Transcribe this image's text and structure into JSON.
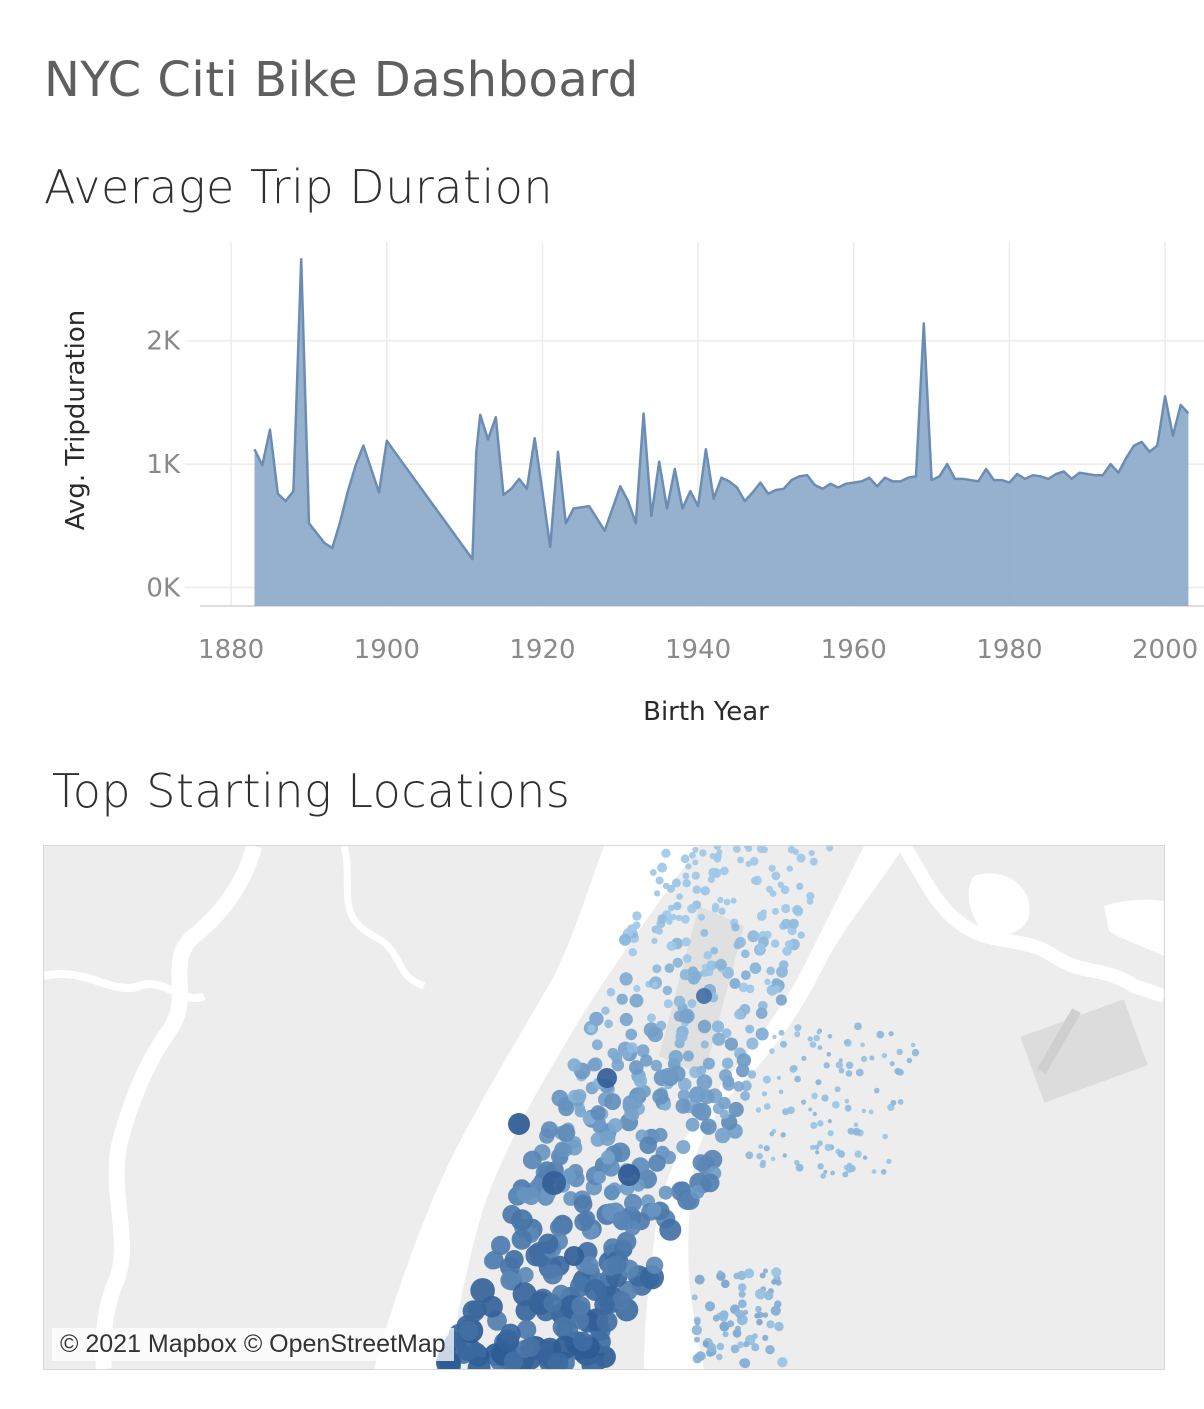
{
  "dashboard": {
    "title": "NYC Citi Bike Dashboard"
  },
  "trip_chart": {
    "section_title": "Average Trip Duration"
  },
  "map": {
    "section_title": "Top Starting Locations",
    "attribution": "© 2021 Mapbox © OpenStreetMap",
    "colors": {
      "land": "#ededed",
      "water": "#ffffff",
      "park": "#e2e2e2",
      "dot_dark": "#2c5a93",
      "dot_light": "#9ec8e8"
    }
  },
  "chart_data": {
    "type": "area",
    "title": "Average Trip Duration",
    "xlabel": "Birth Year",
    "ylabel": "Avg. Tripduration",
    "xlim": [
      1876,
      2005
    ],
    "ylim": [
      -150,
      2800
    ],
    "x_ticks": [
      1880,
      1900,
      1920,
      1940,
      1960,
      1980,
      2000
    ],
    "x_tick_labels": [
      "1880",
      "1900",
      "1920",
      "1940",
      "1960",
      "1980",
      "2000"
    ],
    "y_ticks": [
      0,
      1000,
      2000
    ],
    "y_tick_labels": [
      "0K",
      "1K",
      "2K"
    ],
    "grid": true,
    "fill_color": "#8caac9",
    "line_color": "#6c8db3",
    "x": [
      1883,
      1884,
      1885,
      1886,
      1887,
      1888,
      1889,
      1890,
      1892,
      1893,
      1894,
      1895,
      1896,
      1897,
      1899,
      1900,
      1901,
      1911,
      1911.5,
      1912,
      1913,
      1914,
      1915,
      1916,
      1917,
      1918,
      1919,
      1920,
      1921,
      1922,
      1923,
      1924,
      1926,
      1927,
      1928,
      1929,
      1930,
      1931,
      1932,
      1933,
      1934,
      1935,
      1936,
      1937,
      1938,
      1939,
      1940,
      1941,
      1942,
      1943,
      1944,
      1945,
      1946,
      1947,
      1948,
      1949,
      1950,
      1951,
      1952,
      1953,
      1954,
      1955,
      1956,
      1957,
      1958,
      1959,
      1960,
      1961,
      1962,
      1963,
      1964,
      1965,
      1966,
      1967,
      1968,
      1969,
      1970,
      1971,
      1972,
      1973,
      1974,
      1975,
      1976,
      1977,
      1978,
      1979,
      1980,
      1981,
      1982,
      1983,
      1984,
      1985,
      1986,
      1987,
      1988,
      1989,
      1990,
      1991,
      1992,
      1993,
      1994,
      1995,
      1996,
      1997,
      1998,
      1999,
      2000,
      2001,
      2002,
      2003
    ],
    "y": [
      1120,
      990,
      1280,
      760,
      700,
      780,
      2660,
      520,
      360,
      320,
      530,
      780,
      990,
      1150,
      770,
      1190,
      1100,
      230,
      1100,
      1400,
      1200,
      1380,
      750,
      800,
      880,
      800,
      1210,
      780,
      330,
      1100,
      520,
      640,
      660,
      560,
      460,
      640,
      820,
      700,
      520,
      1410,
      580,
      1020,
      640,
      960,
      640,
      780,
      660,
      1120,
      720,
      890,
      860,
      810,
      700,
      770,
      850,
      760,
      790,
      800,
      870,
      900,
      910,
      830,
      800,
      840,
      810,
      840,
      850,
      860,
      890,
      820,
      890,
      860,
      860,
      890,
      900,
      2140,
      870,
      900,
      1000,
      880,
      880,
      870,
      860,
      960,
      870,
      870,
      850,
      920,
      880,
      910,
      900,
      880,
      920,
      940,
      880,
      930,
      920,
      910,
      910,
      1000,
      930,
      1050,
      1150,
      1180,
      1100,
      1150,
      1550,
      1230,
      1480,
      1410
    ]
  }
}
